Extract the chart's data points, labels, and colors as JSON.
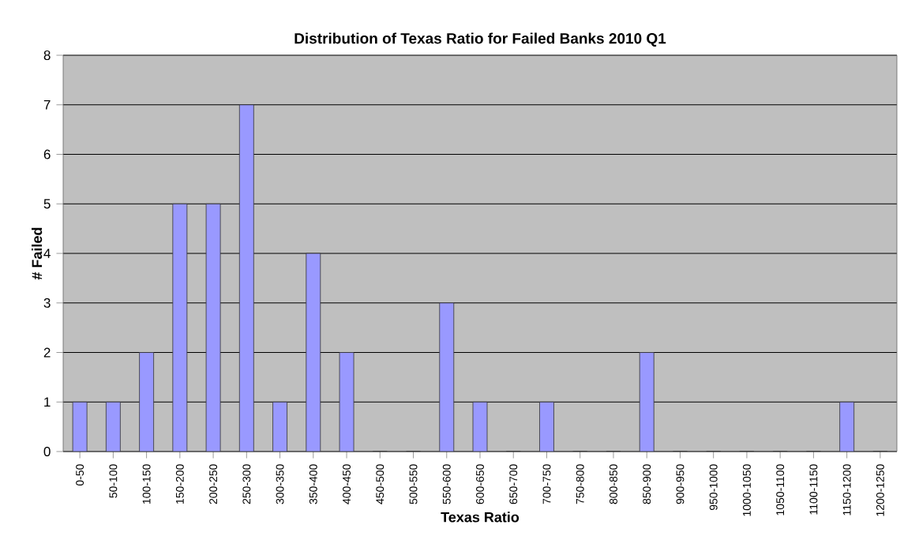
{
  "chart_data": {
    "type": "bar",
    "title": "Distribution of Texas Ratio for Failed Banks 2010 Q1",
    "xlabel": "Texas Ratio",
    "ylabel": "# Failed",
    "categories": [
      "0-50",
      "50-100",
      "100-150",
      "150-200",
      "200-250",
      "250-300",
      "300-350",
      "350-400",
      "400-450",
      "450-500",
      "500-550",
      "550-600",
      "600-650",
      "650-700",
      "700-750",
      "750-800",
      "800-850",
      "850-900",
      "900-950",
      "950-1000",
      "1000-1050",
      "1050-1100",
      "1100-1150",
      "1150-1200",
      "1200-1250"
    ],
    "values": [
      1,
      1,
      2,
      5,
      5,
      7,
      1,
      4,
      2,
      0,
      0,
      3,
      1,
      0,
      1,
      0,
      0,
      2,
      0,
      0,
      0,
      0,
      0,
      1,
      0
    ],
    "color": "#9999ff",
    "ylim": [
      0,
      8
    ],
    "yticks": [
      0,
      1,
      2,
      3,
      4,
      5,
      6,
      7,
      8
    ],
    "grid": "y"
  }
}
